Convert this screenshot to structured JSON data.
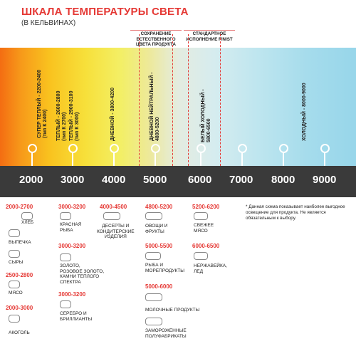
{
  "header": {
    "title": "ШКАЛА ТЕМПЕРАТУРЫ СВЕТА",
    "subtitle": "(В КЕЛЬВИНАХ)"
  },
  "notes": {
    "natural": "СОХРАНЕНИЕ ЕСТЕСТВЕННОГО ЦВЕТА ПРОДУКТА",
    "finist": "СТАНДАРТНОЕ ИСПОЛНЕНИЕ FINIST"
  },
  "spectrum_labels": [
    "СУПЕР ТЕПЛЫЙ - 2200-2400\n(тип К 2400)",
    "ТЕПЛЫЙ - 2600-2800\n(тип К 2700)",
    "ТЕПЛЫЙ - 2900-3100\n(тип К 3000)",
    "ДНЕВНОЙ - 3800-4200",
    "ДНЕВНОЙ НЕЙТРАЛЬНЫЙ -\n4800-5200",
    "БЕЛЫЙ ХОЛОДНЫЙ -\n5800-6500",
    "ХОЛОДНЫЙ - 8000-9000"
  ],
  "kelvin_values": [
    "2000",
    "3000",
    "4000",
    "5000",
    "6000",
    "7000",
    "8000",
    "9000"
  ],
  "categories": {
    "c1": [
      {
        "range": "2000-2700",
        "label": "ХЛЕБ",
        "icon": "bread-icon"
      },
      {
        "range": "",
        "label": "ВЫПЕЧКА",
        "icon": "pastry-icon"
      },
      {
        "range": "",
        "label": "СЫРЫ",
        "icon": "cheese-icon"
      },
      {
        "range": "2500-2800",
        "label": "МЯСО",
        "icon": "meat-icon"
      },
      {
        "range": "2000-3000",
        "label": "АКОГОЛЬ",
        "icon": "bottle-icon"
      }
    ],
    "c2": [
      {
        "range": "3000-3200",
        "label": "КРАСНАЯ\nРЫБА",
        "icon": "fish-icon"
      },
      {
        "range": "3000-3200",
        "label": "ЗОЛОТО,\nРОЗОВОЕ ЗОЛОТО,\nКАМНИ ТЕПЛОГО\nСПЕКТРА",
        "icon": "ring-icon"
      },
      {
        "range": "3000-3200",
        "label": "СЕРЕБРО И\nБРИЛЛИАНТЫ",
        "icon": "diamond-icon"
      }
    ],
    "c3": [
      {
        "range": "4000-4500",
        "label": "ДЕСЕРТЫ И\nКОНДИТЕРСКИЕ\nИЗДЕЛИЯ",
        "icon": "cake-icon"
      }
    ],
    "c4": [
      {
        "range": "4800-5200",
        "label": "ОВОЩИ И\nФРУКТЫ",
        "icon": "vegetables-icon"
      },
      {
        "range": "5000-5500",
        "label": "РЫБА И\nМОРЕПРОДУКТЫ",
        "icon": "seafood-icon"
      },
      {
        "range": "5000-6000",
        "label": "МОЛОЧНЫЕ ПРОДУКТЫ",
        "icon": "milk-icon"
      },
      {
        "range": "",
        "label": "ЗАМОРОЖЕННЫЕ\nПОЛУФАБРИКАТЫ",
        "icon": "frozen-icon"
      }
    ],
    "c5": [
      {
        "range": "5200-6200",
        "label": "СВЕЖЕЕ\nМЯСО",
        "icon": "fresh-meat-icon"
      },
      {
        "range": "6000-6500",
        "label": "НЕРЖАВЕЙКА,\nЛЕД",
        "icon": "cutlery-icon"
      }
    ]
  },
  "disclaimer": "* Данная схема показывает наиболее выгодное освещение для продукта. Не является обязательным к выбору."
}
